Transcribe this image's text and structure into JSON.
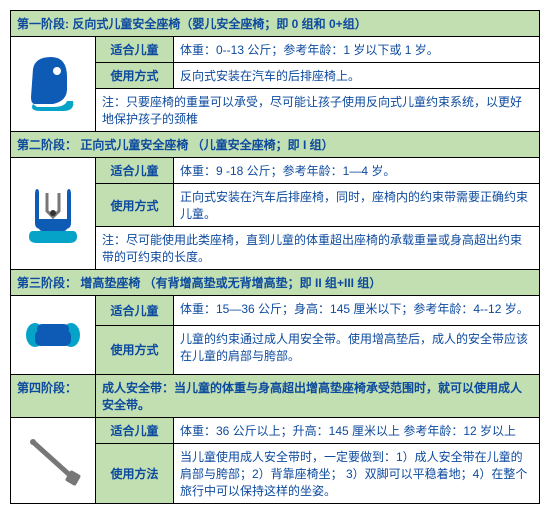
{
  "colors": {
    "header_bg": "#c2dfb2",
    "border": "#000000",
    "text": "#0c4a9e",
    "seat_blue": "#0d5bb5",
    "seat_accent": "#06a3c9",
    "belt_gray": "#777777"
  },
  "stages": [
    {
      "title": "第一阶段: 反向式儿童安全座椅（婴儿安全座椅；即 0 组和 0+组）",
      "icon": "rear-facing-seat",
      "rows": [
        {
          "label": "适合儿童",
          "content": "体重：0--13 公斤；参考年龄：1 岁以下或 1 岁。"
        },
        {
          "label": "使用方式",
          "content": "反向式安装在汽车的后排座椅上。"
        },
        {
          "label": "注：",
          "content": "只要座椅的重量可以承受，尽可能让孩子使用反向式儿童约束系统，以更好地保护孩子的颈椎",
          "is_note": true
        }
      ]
    },
    {
      "title": "第二阶段：  正向式儿童安全座椅 （儿童安全座椅；即 I 组）",
      "icon": "forward-facing-seat",
      "rows": [
        {
          "label": "适合儿童",
          "content": "体重：9 -18 公斤；参考年龄：1—4 岁。"
        },
        {
          "label": "使用方式",
          "content": "正向式安装在汽车后排座椅，同时，座椅内的约束带需要正确约束儿童。"
        },
        {
          "label": "注：",
          "content": "尽可能使用此类座椅，直到儿童的体重超出座椅的承载重量或身高超出约束带的可约束的长度。",
          "is_note": true
        }
      ]
    },
    {
      "title": "第三阶段：        增高垫座椅 （有背增高垫或无背增高垫；即 II 组+III 组）",
      "icon": "booster-seat",
      "rows": [
        {
          "label": "适合儿童",
          "content": "体重：15—36 公斤；身高：145 厘米以下；参考年龄：4--12 岁。"
        },
        {
          "label": "使用方式",
          "content": "儿童的约束通过成人用安全带。使用增高垫后，成人的安全带应该在儿童的肩部与胯部。"
        }
      ]
    },
    {
      "title_label": "第四阶段：",
      "title_rest": "成人安全带：当儿童的体重与身高超出增高垫座椅承受范围时，就可以使用成人安全带。",
      "icon": "seat-belt",
      "split_header": true,
      "rows": [
        {
          "label": "适合儿童",
          "content": "体重：36 公斤以上；升高：145 厘米以上  参考年龄：12 岁以上"
        },
        {
          "label": "使用方法",
          "content": "当儿童使用成人安全带时，一定要做到：1）成人安全带在儿童的肩部与胯部；2）背靠座椅坐； 3）双脚可以平稳着地；4）在整个旅行中可以保持这样的坐姿。"
        }
      ]
    }
  ]
}
